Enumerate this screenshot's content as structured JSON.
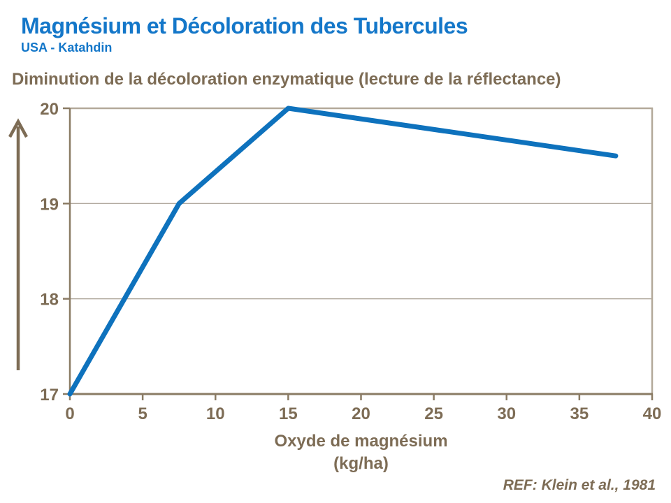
{
  "header": {
    "title": "Magnésium et Décoloration des Tubercules",
    "subtitle": "USA - Katahdin"
  },
  "chart_heading": "Diminution de la décoloration enzymatique (lecture de la réflectance)",
  "chart_data": {
    "type": "line",
    "title": "Diminution de la décoloration enzymatique (lecture de la réflectance)",
    "x": [
      0,
      7.5,
      15,
      37.5
    ],
    "values": [
      17,
      19,
      20,
      19.5
    ],
    "series": [
      {
        "name": "Réflectance",
        "values": [
          17,
          19,
          20,
          19.5
        ]
      }
    ],
    "xlabel_line1": "Oxyde de magnésium",
    "xlabel_line2": "(kg/ha)",
    "ylabel": "",
    "xlim": [
      0,
      40
    ],
    "ylim": [
      17,
      20
    ],
    "xticks": [
      0,
      5,
      10,
      15,
      20,
      25,
      30,
      35,
      40
    ],
    "yticks": [
      17,
      18,
      19,
      20
    ],
    "grid": "horizontal",
    "legend": "none"
  },
  "footer": {
    "ref": "REF: Klein et al., 1981"
  },
  "icons": {
    "y_axis_arrow": "up-arrow"
  },
  "colors": {
    "title_blue": "#1477c9",
    "line_blue": "#0e72bd",
    "text_brown": "#7d6c55",
    "axis_brown": "#8a7b64",
    "gridline": "#b1a99e",
    "plot_border": "#b3a99a"
  }
}
